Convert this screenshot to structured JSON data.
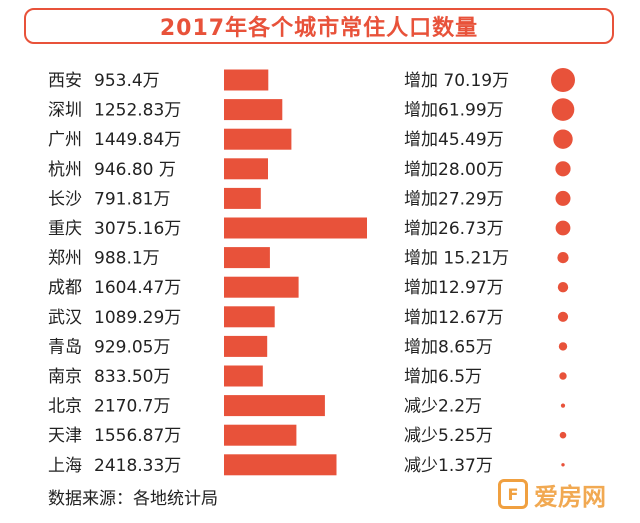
{
  "title": "2017年各个城市常住人口数量",
  "source_note": "数据来源：各地统计局",
  "watermark": {
    "text": "爱房网",
    "logo": "F"
  },
  "colors": {
    "accent": "#e8523a"
  },
  "chart_data": {
    "type": "bar",
    "title": "2017年各个城市常住人口数量",
    "unit": "万",
    "rows": [
      {
        "city": "西安",
        "population_label": "953.4万",
        "population": 953.4,
        "change_label": "增加 70.19万",
        "change": 70.19
      },
      {
        "city": "深圳",
        "population_label": "1252.83万",
        "population": 1252.83,
        "change_label": "增加61.99万",
        "change": 61.99
      },
      {
        "city": "广州",
        "population_label": "1449.84万",
        "population": 1449.84,
        "change_label": "增加45.49万",
        "change": 45.49
      },
      {
        "city": "杭州",
        "population_label": "946.80 万",
        "population": 946.8,
        "change_label": "增加28.00万",
        "change": 28.0
      },
      {
        "city": "长沙",
        "population_label": "791.81万",
        "population": 791.81,
        "change_label": "增加27.29万",
        "change": 27.29
      },
      {
        "city": "重庆",
        "population_label": "3075.16万",
        "population": 3075.16,
        "change_label": "增加26.73万",
        "change": 26.73
      },
      {
        "city": "郑州",
        "population_label": "988.1万",
        "population": 988.1,
        "change_label": "增加 15.21万",
        "change": 15.21
      },
      {
        "city": "成都",
        "population_label": "1604.47万",
        "population": 1604.47,
        "change_label": "增加12.97万",
        "change": 12.97
      },
      {
        "city": "武汉",
        "population_label": "1089.29万",
        "population": 1089.29,
        "change_label": "增加12.67万",
        "change": 12.67
      },
      {
        "city": "青岛",
        "population_label": "929.05万",
        "population": 929.05,
        "change_label": "增加8.65万",
        "change": 8.65
      },
      {
        "city": "南京",
        "population_label": "833.50万",
        "population": 833.5,
        "change_label": "增加6.5万",
        "change": 6.5
      },
      {
        "city": "北京",
        "population_label": "2170.7万",
        "population": 2170.7,
        "change_label": "减少2.2万",
        "change": -2.2
      },
      {
        "city": "天津",
        "population_label": "1556.87万",
        "population": 1556.87,
        "change_label": "减少5.25万",
        "change": -5.25
      },
      {
        "city": "上海",
        "population_label": "2418.33万",
        "population": 2418.33,
        "change_label": "减少1.37万",
        "change": -1.37
      }
    ]
  }
}
